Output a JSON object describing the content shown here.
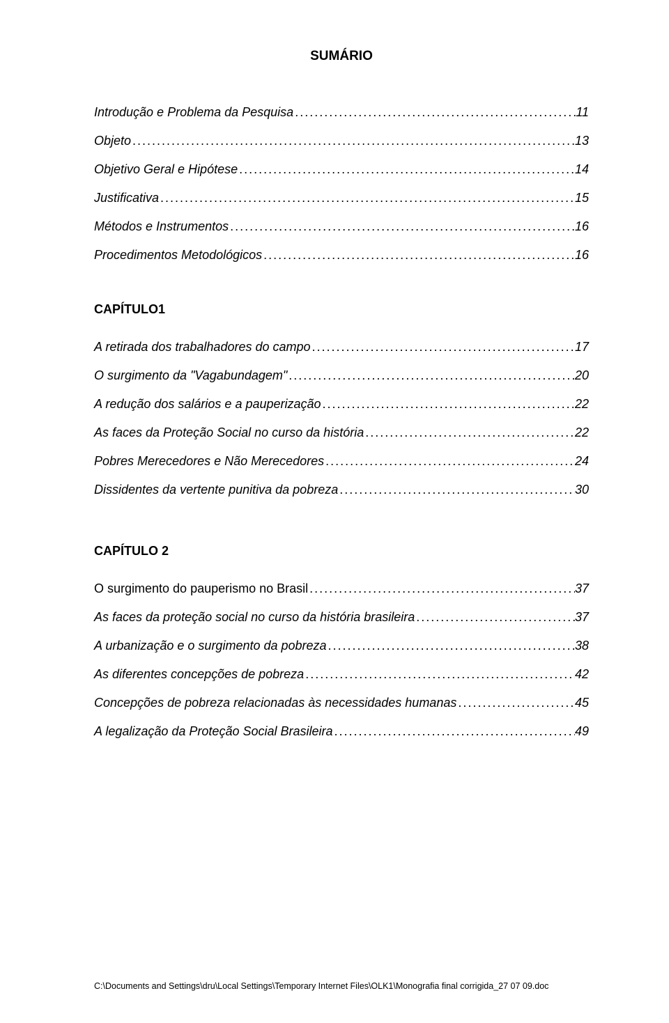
{
  "title": "SUMÁRIO",
  "intro": [
    {
      "label": "Introdução e Problema da Pesquisa",
      "page": "11",
      "italic": true
    },
    {
      "label": "Objeto",
      "page": "13",
      "italic": true
    },
    {
      "label": "Objetivo Geral e Hipótese",
      "page": "14",
      "italic": true
    },
    {
      "label": "Justificativa",
      "page": "15",
      "italic": true
    },
    {
      "label": "Métodos e Instrumentos",
      "page": "16",
      "italic": true
    },
    {
      "label": "Procedimentos Metodológicos",
      "page": "16",
      "italic": true
    }
  ],
  "chapter1": {
    "heading": "CAPÍTULO1",
    "items": [
      {
        "label": "A retirada dos trabalhadores do campo",
        "page": "17",
        "italic": true
      },
      {
        "label": "O surgimento da \"Vagabundagem\"",
        "page": "20",
        "italic": true
      },
      {
        "label": "A redução dos salários e a pauperização",
        "page": "22",
        "italic": true
      },
      {
        "label": "As faces da Proteção Social no curso da história",
        "page": "22",
        "italic": true
      },
      {
        "label": "Pobres Merecedores e Não Merecedores",
        "page": "24",
        "italic": true
      },
      {
        "label": "Dissidentes da vertente punitiva da pobreza",
        "page": "30",
        "italic": true
      }
    ]
  },
  "chapter2": {
    "heading": "CAPÍTULO 2",
    "items": [
      {
        "label": "O surgimento do pauperismo no Brasil",
        "page": "37",
        "italic": false,
        "pgItalic": true
      },
      {
        "label": "As faces da proteção social no curso da história brasileira",
        "page": "37",
        "italic": true
      },
      {
        "label": "A urbanização e o surgimento da pobreza",
        "page": "38",
        "italic": true
      },
      {
        "label": "As diferentes concepções de pobreza",
        "page": "42",
        "italic": true
      },
      {
        "label": "Concepções de pobreza relacionadas às necessidades humanas",
        "page": "45",
        "italic": true
      },
      {
        "label": "A legalização da Proteção Social Brasileira",
        "page": "49",
        "italic": true
      }
    ]
  },
  "footer": "C:\\Documents and Settings\\dru\\Local Settings\\Temporary Internet Files\\OLK1\\Monografia final corrigida_27 07 09.doc"
}
